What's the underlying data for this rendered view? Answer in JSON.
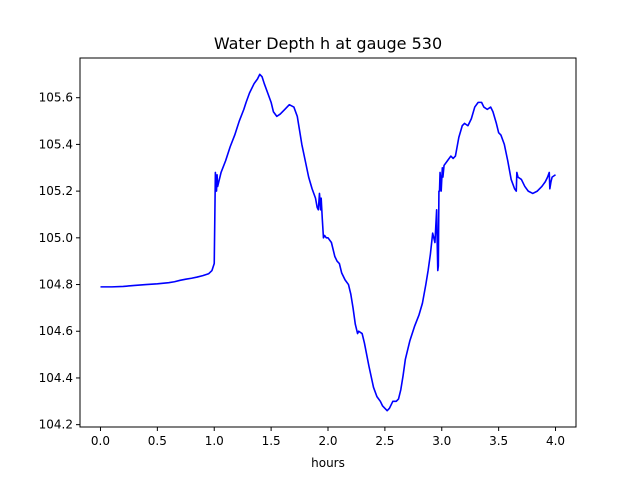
{
  "chart_data": {
    "type": "line",
    "title": "Water Depth h at gauge 530",
    "xlabel": "hours",
    "ylabel": "",
    "xlim": [
      -0.18,
      4.18
    ],
    "ylim": [
      104.19,
      105.77
    ],
    "grid": false,
    "x_ticks": [
      0.0,
      0.5,
      1.0,
      1.5,
      2.0,
      2.5,
      3.0,
      3.5,
      4.0
    ],
    "x_tick_labels": [
      "0.0",
      "0.5",
      "1.0",
      "1.5",
      "2.0",
      "2.5",
      "3.0",
      "3.5",
      "4.0"
    ],
    "y_ticks": [
      104.2,
      104.4,
      104.6,
      104.8,
      105.0,
      105.2,
      105.4,
      105.6
    ],
    "y_tick_labels": [
      "104.2",
      "104.4",
      "104.6",
      "104.8",
      "105.0",
      "105.2",
      "105.4",
      "105.6"
    ],
    "series": [
      {
        "color": "#0000ff",
        "x": [
          0.0,
          0.1,
          0.2,
          0.3,
          0.4,
          0.5,
          0.6,
          0.65,
          0.7,
          0.75,
          0.8,
          0.85,
          0.9,
          0.95,
          0.98,
          1.0,
          1.01,
          1.02,
          1.025,
          1.03,
          1.06,
          1.1,
          1.14,
          1.18,
          1.22,
          1.26,
          1.28,
          1.31,
          1.35,
          1.38,
          1.4,
          1.42,
          1.44,
          1.47,
          1.5,
          1.52,
          1.55,
          1.58,
          1.62,
          1.66,
          1.7,
          1.73,
          1.75,
          1.77,
          1.8,
          1.83,
          1.86,
          1.89,
          1.905,
          1.915,
          1.925,
          1.935,
          1.94,
          1.95,
          1.96,
          1.97,
          1.985,
          2.0,
          2.03,
          2.06,
          2.08,
          2.1,
          2.12,
          2.15,
          2.18,
          2.2,
          2.22,
          2.24,
          2.26,
          2.27,
          2.3,
          2.32,
          2.36,
          2.4,
          2.43,
          2.46,
          2.48,
          2.52,
          2.54,
          2.57,
          2.6,
          2.62,
          2.64,
          2.66,
          2.68,
          2.72,
          2.76,
          2.8,
          2.83,
          2.86,
          2.88,
          2.9,
          2.92,
          2.94,
          2.955,
          2.96,
          2.965,
          2.97,
          2.975,
          2.98,
          2.985,
          2.99,
          2.995,
          3.0,
          3.005,
          3.01,
          3.02,
          3.05,
          3.08,
          3.1,
          3.12,
          3.15,
          3.18,
          3.2,
          3.23,
          3.26,
          3.29,
          3.32,
          3.35,
          3.37,
          3.4,
          3.43,
          3.45,
          3.48,
          3.5,
          3.52,
          3.55,
          3.58,
          3.61,
          3.64,
          3.655,
          3.66,
          3.67,
          3.7,
          3.73,
          3.76,
          3.8,
          3.84,
          3.88,
          3.91,
          3.93,
          3.945,
          3.95,
          3.96,
          3.97,
          4.0
        ],
        "y": [
          104.79,
          104.79,
          104.792,
          104.796,
          104.8,
          104.803,
          104.808,
          104.812,
          104.818,
          104.823,
          104.827,
          104.832,
          104.838,
          104.846,
          104.86,
          104.89,
          105.28,
          105.2,
          105.27,
          105.22,
          105.28,
          105.33,
          105.39,
          105.44,
          105.5,
          105.55,
          105.58,
          105.62,
          105.66,
          105.68,
          105.7,
          105.69,
          105.66,
          105.62,
          105.58,
          105.54,
          105.52,
          105.53,
          105.55,
          105.57,
          105.56,
          105.52,
          105.46,
          105.4,
          105.33,
          105.26,
          105.21,
          105.17,
          105.13,
          105.12,
          105.19,
          105.12,
          105.17,
          105.08,
          105.0,
          105.01,
          105.0,
          105.0,
          104.98,
          104.92,
          104.9,
          104.89,
          104.85,
          104.82,
          104.8,
          104.76,
          104.7,
          104.63,
          104.59,
          104.6,
          104.59,
          104.55,
          104.45,
          104.36,
          104.32,
          104.3,
          104.28,
          104.26,
          104.27,
          104.3,
          104.3,
          104.31,
          104.35,
          104.41,
          104.48,
          104.56,
          104.62,
          104.67,
          104.72,
          104.8,
          104.86,
          104.93,
          105.02,
          104.98,
          105.12,
          104.98,
          104.86,
          104.88,
          105.2,
          105.2,
          105.28,
          105.25,
          105.2,
          105.25,
          105.3,
          105.26,
          105.31,
          105.33,
          105.35,
          105.34,
          105.35,
          105.43,
          105.48,
          105.49,
          105.48,
          105.51,
          105.56,
          105.58,
          105.58,
          105.56,
          105.55,
          105.56,
          105.54,
          105.49,
          105.45,
          105.44,
          105.4,
          105.33,
          105.25,
          105.21,
          105.2,
          105.28,
          105.26,
          105.25,
          105.22,
          105.2,
          105.19,
          105.2,
          105.22,
          105.24,
          105.26,
          105.28,
          105.21,
          105.24,
          105.26,
          105.27
        ]
      }
    ]
  }
}
